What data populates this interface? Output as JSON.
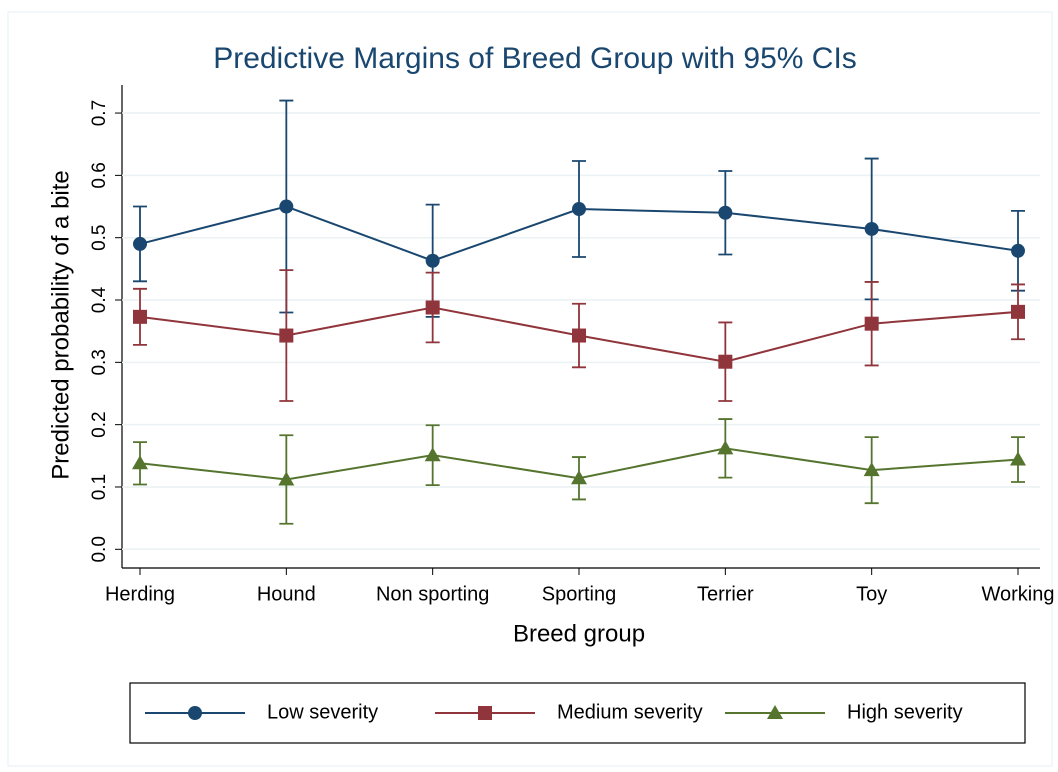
{
  "chart_data": {
    "type": "line",
    "title": "Predictive Margins of Breed Group with 95% CIs",
    "x_label": "Breed group",
    "y_label": "Predicted probability of a bite",
    "categories": [
      "Herding",
      "Hound",
      "Non sporting",
      "Sporting",
      "Terrier",
      "Toy",
      "Working"
    ],
    "ylim": [
      -0.03,
      0.745
    ],
    "yticks": [
      {
        "value": 0,
        "label": "0.0"
      },
      {
        "value": 0.1,
        "label": "0.1"
      },
      {
        "value": 0.2,
        "label": "0.2"
      },
      {
        "value": 0.3,
        "label": "0.3"
      },
      {
        "value": 0.4,
        "label": "0.4"
      },
      {
        "value": 0.5,
        "label": "0.5"
      },
      {
        "value": 0.6,
        "label": "0.6"
      },
      {
        "value": 0.7,
        "label": "0.7"
      }
    ],
    "grid": true,
    "legend": "bottom",
    "series": [
      {
        "name": "Low severity",
        "color": "#1a476f",
        "marker": "circle",
        "values": [
          0.49,
          0.55,
          0.463,
          0.546,
          0.54,
          0.514,
          0.479
        ],
        "errors": [
          0.06,
          0.17,
          0.09,
          0.077,
          0.067,
          0.113,
          0.064
        ]
      },
      {
        "name": "Medium severity",
        "color": "#90353b",
        "marker": "square",
        "values": [
          0.373,
          0.343,
          0.388,
          0.343,
          0.301,
          0.362,
          0.381
        ],
        "errors": [
          0.045,
          0.105,
          0.056,
          0.051,
          0.063,
          0.067,
          0.044
        ]
      },
      {
        "name": "High severity",
        "color": "#55752f",
        "marker": "triangle",
        "values": [
          0.138,
          0.112,
          0.151,
          0.114,
          0.162,
          0.127,
          0.144
        ],
        "errors": [
          0.034,
          0.071,
          0.048,
          0.034,
          0.047,
          0.053,
          0.036
        ]
      }
    ]
  }
}
